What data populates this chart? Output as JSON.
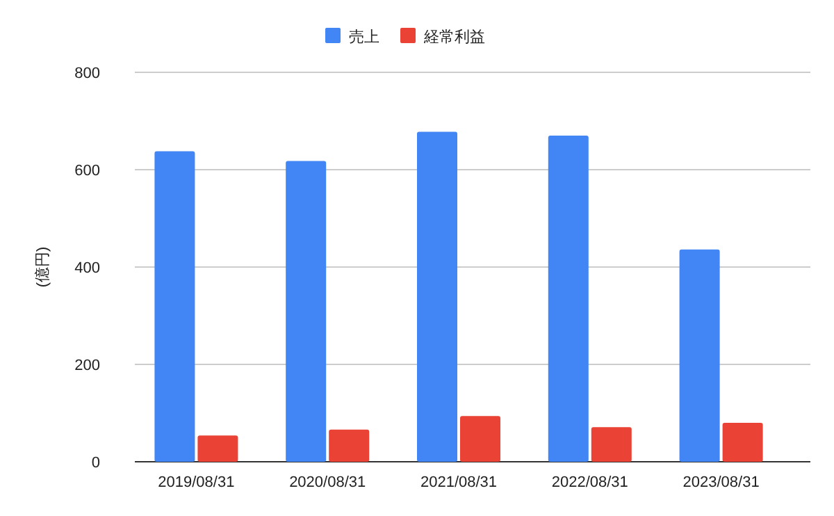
{
  "chart_data": {
    "type": "bar",
    "ylabel": "(億円)",
    "categories": [
      "2019/08/31",
      "2020/08/31",
      "2021/08/31",
      "2022/08/31",
      "2023/08/31"
    ],
    "series": [
      {
        "name": "売上",
        "color": "#4285f4",
        "values": [
          638,
          618,
          678,
          670,
          436
        ]
      },
      {
        "name": "経常利益",
        "color": "#ea4335",
        "values": [
          54,
          66,
          94,
          71,
          80
        ]
      }
    ],
    "ylim": [
      0,
      800
    ],
    "yticks": [
      0,
      200,
      400,
      600,
      800
    ],
    "grid": "y",
    "legend": "top"
  }
}
